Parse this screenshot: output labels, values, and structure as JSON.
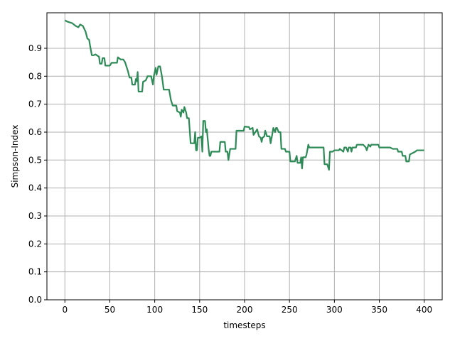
{
  "chart_data": {
    "type": "line",
    "xlabel": "timesteps",
    "ylabel": "Simpson-Index",
    "color": "#2e8b57",
    "grid": true,
    "xlim": [
      -20,
      420
    ],
    "ylim": [
      0,
      1.027
    ],
    "xticks": [
      0,
      50,
      100,
      150,
      200,
      250,
      300,
      350,
      400
    ],
    "yticks": [
      {
        "value": 0,
        "label": "0.0"
      },
      0.1,
      0.2,
      0.3,
      0.4,
      0.5,
      0.6,
      0.7,
      0.8,
      0.9
    ],
    "x": [
      0,
      3,
      8,
      10,
      12,
      15,
      17,
      20,
      23,
      25,
      27,
      28,
      30,
      32,
      34,
      38,
      39,
      41,
      42,
      44,
      45,
      50,
      52,
      58,
      59,
      62,
      65,
      67,
      70,
      72,
      74,
      75,
      78,
      79,
      80,
      81,
      82,
      86,
      87,
      90,
      92,
      96,
      97,
      98,
      99,
      101,
      102,
      104,
      106,
      108,
      110,
      116,
      118,
      120,
      124,
      125,
      128,
      129,
      130,
      132,
      133,
      135,
      136,
      138,
      140,
      144,
      145,
      146,
      147,
      148,
      150,
      152,
      153,
      154,
      156,
      157,
      158,
      160,
      161,
      162,
      163,
      172,
      173,
      178,
      179,
      181,
      182,
      184,
      190,
      191,
      199,
      200,
      205,
      206,
      209,
      210,
      214,
      216,
      218,
      219,
      220,
      222,
      223,
      225,
      228,
      229,
      231,
      232,
      234,
      235,
      236,
      238,
      240,
      241,
      245,
      246,
      250,
      251,
      256,
      257,
      258,
      259,
      262,
      263,
      264,
      265,
      268,
      269,
      271,
      272,
      288,
      289,
      292,
      294,
      295,
      298,
      300,
      305,
      306,
      310,
      311,
      313,
      315,
      316,
      318,
      319,
      320,
      324,
      325,
      332,
      335,
      336,
      338,
      340,
      341,
      349,
      350,
      362,
      365,
      370,
      371,
      375,
      376,
      379,
      380,
      383,
      384,
      387,
      390,
      392,
      400
    ],
    "values": [
      1.0,
      0.995,
      0.99,
      0.985,
      0.98,
      0.975,
      0.985,
      0.98,
      0.96,
      0.935,
      0.93,
      0.91,
      0.875,
      0.875,
      0.878,
      0.87,
      0.845,
      0.845,
      0.865,
      0.865,
      0.838,
      0.838,
      0.848,
      0.848,
      0.868,
      0.86,
      0.86,
      0.85,
      0.82,
      0.795,
      0.795,
      0.77,
      0.77,
      0.79,
      0.782,
      0.815,
      0.745,
      0.745,
      0.78,
      0.785,
      0.8,
      0.8,
      0.785,
      0.77,
      0.8,
      0.83,
      0.805,
      0.835,
      0.835,
      0.8,
      0.752,
      0.752,
      0.715,
      0.695,
      0.695,
      0.675,
      0.67,
      0.655,
      0.68,
      0.67,
      0.69,
      0.67,
      0.65,
      0.65,
      0.56,
      0.56,
      0.6,
      0.535,
      0.535,
      0.58,
      0.58,
      0.585,
      0.53,
      0.64,
      0.64,
      0.6,
      0.61,
      0.54,
      0.515,
      0.515,
      0.53,
      0.53,
      0.565,
      0.565,
      0.53,
      0.53,
      0.5,
      0.54,
      0.54,
      0.605,
      0.605,
      0.62,
      0.618,
      0.61,
      0.615,
      0.59,
      0.61,
      0.585,
      0.58,
      0.565,
      0.58,
      0.585,
      0.605,
      0.585,
      0.585,
      0.56,
      0.595,
      0.615,
      0.6,
      0.615,
      0.615,
      0.6,
      0.6,
      0.54,
      0.54,
      0.53,
      0.53,
      0.495,
      0.495,
      0.505,
      0.515,
      0.49,
      0.49,
      0.51,
      0.47,
      0.51,
      0.51,
      0.52,
      0.555,
      0.545,
      0.545,
      0.485,
      0.485,
      0.465,
      0.53,
      0.53,
      0.535,
      0.535,
      0.54,
      0.53,
      0.545,
      0.545,
      0.53,
      0.545,
      0.545,
      0.53,
      0.545,
      0.545,
      0.555,
      0.555,
      0.545,
      0.535,
      0.555,
      0.548,
      0.555,
      0.555,
      0.545,
      0.545,
      0.54,
      0.54,
      0.53,
      0.53,
      0.515,
      0.515,
      0.495,
      0.495,
      0.52,
      0.525,
      0.53,
      0.535,
      0.535
    ]
  }
}
